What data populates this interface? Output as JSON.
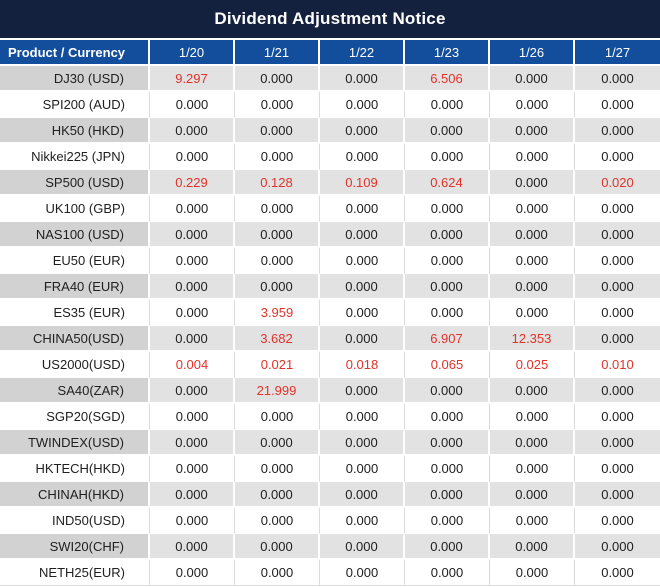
{
  "title": "Dividend Adjustment Notice",
  "chart_data": {
    "type": "table",
    "title": "Dividend Adjustment Notice",
    "product_header": "Product / Currency",
    "date_headers": [
      "1/20",
      "1/21",
      "1/22",
      "1/23",
      "1/26",
      "1/27"
    ],
    "rows": [
      {
        "product": "DJ30 (USD)",
        "values": [
          "9.297",
          "0.000",
          "0.000",
          "6.506",
          "0.000",
          "0.000"
        ]
      },
      {
        "product": "SPI200 (AUD)",
        "values": [
          "0.000",
          "0.000",
          "0.000",
          "0.000",
          "0.000",
          "0.000"
        ]
      },
      {
        "product": "HK50 (HKD)",
        "values": [
          "0.000",
          "0.000",
          "0.000",
          "0.000",
          "0.000",
          "0.000"
        ]
      },
      {
        "product": "Nikkei225 (JPN)",
        "values": [
          "0.000",
          "0.000",
          "0.000",
          "0.000",
          "0.000",
          "0.000"
        ]
      },
      {
        "product": "SP500 (USD)",
        "values": [
          "0.229",
          "0.128",
          "0.109",
          "0.624",
          "0.000",
          "0.020"
        ]
      },
      {
        "product": "UK100 (GBP)",
        "values": [
          "0.000",
          "0.000",
          "0.000",
          "0.000",
          "0.000",
          "0.000"
        ]
      },
      {
        "product": "NAS100 (USD)",
        "values": [
          "0.000",
          "0.000",
          "0.000",
          "0.000",
          "0.000",
          "0.000"
        ]
      },
      {
        "product": "EU50 (EUR)",
        "values": [
          "0.000",
          "0.000",
          "0.000",
          "0.000",
          "0.000",
          "0.000"
        ]
      },
      {
        "product": "FRA40 (EUR)",
        "values": [
          "0.000",
          "0.000",
          "0.000",
          "0.000",
          "0.000",
          "0.000"
        ]
      },
      {
        "product": "ES35 (EUR)",
        "values": [
          "0.000",
          "3.959",
          "0.000",
          "0.000",
          "0.000",
          "0.000"
        ]
      },
      {
        "product": "CHINA50(USD)",
        "values": [
          "0.000",
          "3.682",
          "0.000",
          "6.907",
          "12.353",
          "0.000"
        ]
      },
      {
        "product": "US2000(USD)",
        "values": [
          "0.004",
          "0.021",
          "0.018",
          "0.065",
          "0.025",
          "0.010"
        ]
      },
      {
        "product": "SA40(ZAR)",
        "values": [
          "0.000",
          "21.999",
          "0.000",
          "0.000",
          "0.000",
          "0.000"
        ]
      },
      {
        "product": "SGP20(SGD)",
        "values": [
          "0.000",
          "0.000",
          "0.000",
          "0.000",
          "0.000",
          "0.000"
        ]
      },
      {
        "product": "TWINDEX(USD)",
        "values": [
          "0.000",
          "0.000",
          "0.000",
          "0.000",
          "0.000",
          "0.000"
        ]
      },
      {
        "product": "HKTECH(HKD)",
        "values": [
          "0.000",
          "0.000",
          "0.000",
          "0.000",
          "0.000",
          "0.000"
        ]
      },
      {
        "product": "CHINAH(HKD)",
        "values": [
          "0.000",
          "0.000",
          "0.000",
          "0.000",
          "0.000",
          "0.000"
        ]
      },
      {
        "product": "IND50(USD)",
        "values": [
          "0.000",
          "0.000",
          "0.000",
          "0.000",
          "0.000",
          "0.000"
        ]
      },
      {
        "product": "SWI20(CHF)",
        "values": [
          "0.000",
          "0.000",
          "0.000",
          "0.000",
          "0.000",
          "0.000"
        ]
      },
      {
        "product": "NETH25(EUR)",
        "values": [
          "0.000",
          "0.000",
          "0.000",
          "0.000",
          "0.000",
          "0.000"
        ]
      }
    ],
    "highlight_rule": "non-zero values rendered in red",
    "layout": {
      "zebra": "odd rows gray, even rows white",
      "value_align": "center",
      "product_align": "right"
    }
  },
  "colors": {
    "title_bar_bg": "#13213F",
    "header_bg": "#134E9C",
    "header_text": "#FFFFFF",
    "row_alt_product_bg": "#D2D2D2",
    "row_alt_value_bg": "#E2E2E2",
    "value_text": "#202020",
    "highlight_red": "#E1332A"
  }
}
